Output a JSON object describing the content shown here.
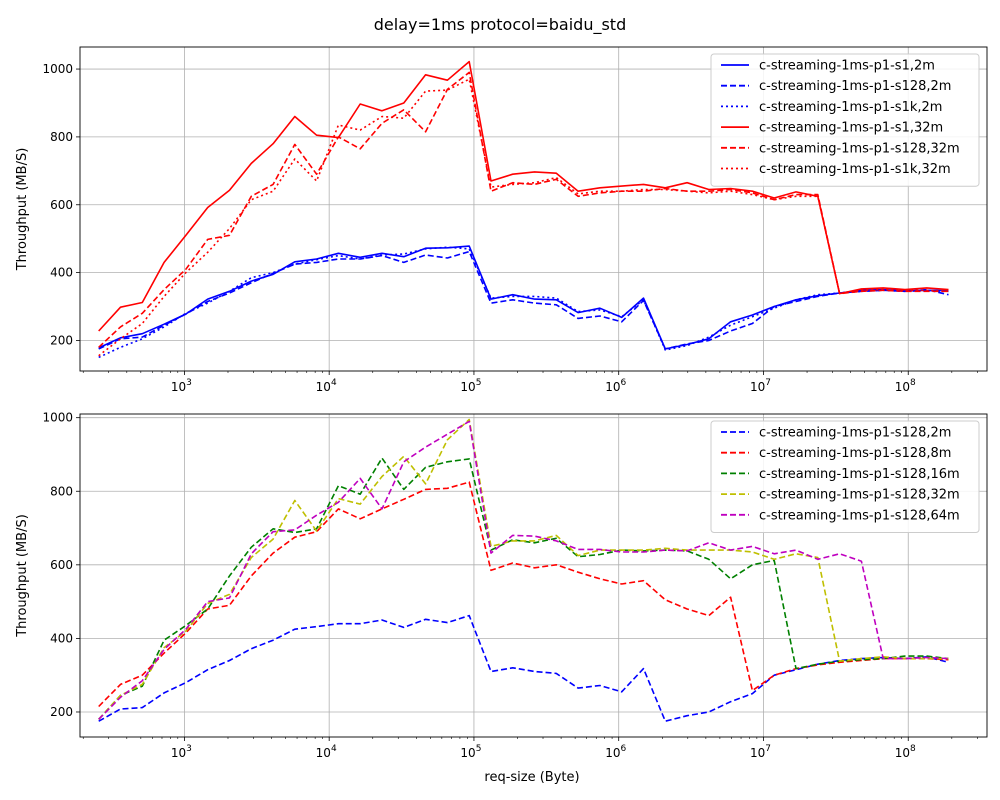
{
  "figure": {
    "title": "delay=1ms protocol=baidu_std",
    "xlabel": "req-size (Byte)"
  },
  "colors": {
    "blue": "#0000ff",
    "red": "#ff0000",
    "green": "#008000",
    "olive": "#bfbf00",
    "magenta": "#bf00bf",
    "grid": "#b0b0b0"
  },
  "chart_data": [
    {
      "type": "line",
      "xscale": "log",
      "ylabel": "Throughput (MB/S)",
      "xlim": [
        190,
        350000000
      ],
      "ylim": [
        110,
        1065
      ],
      "yticks": [
        200,
        400,
        600,
        800,
        1000
      ],
      "xticks": [
        {
          "base": "10",
          "exp": "3",
          "value": 1000
        },
        {
          "base": "10",
          "exp": "4",
          "value": 10000
        },
        {
          "base": "10",
          "exp": "5",
          "value": 100000
        },
        {
          "base": "10",
          "exp": "6",
          "value": 1000000
        },
        {
          "base": "10",
          "exp": "7",
          "value": 10000000
        },
        {
          "base": "10",
          "exp": "8",
          "value": 100000000
        }
      ],
      "grid": true,
      "legend": "top-right",
      "x": [
        256,
        362,
        512,
        724,
        1024,
        1448,
        2048,
        2896,
        4096,
        5792,
        8192,
        11585,
        16384,
        23170,
        32768,
        46341,
        65536,
        92682,
        131072,
        185364,
        262144,
        370728,
        524288,
        741455,
        1048576,
        1482910,
        2097152,
        2965821,
        4194304,
        5931642,
        8388608,
        11863283,
        16777216,
        23726566,
        33554432,
        47453133,
        67108864,
        94906266,
        134217728,
        189812531
      ],
      "series": [
        {
          "name": "c-streaming-1ms-p1-s1,2m",
          "color": "#0000ff",
          "dash": "solid",
          "values": [
            178,
            208,
            220,
            248,
            278,
            322,
            345,
            375,
            395,
            432,
            440,
            457,
            445,
            457,
            447,
            472,
            473,
            478,
            322,
            335,
            322,
            320,
            282,
            295,
            268,
            325,
            175,
            188,
            205,
            255,
            275,
            300,
            320,
            332,
            340,
            348,
            350,
            346,
            348,
            347
          ]
        },
        {
          "name": "c-streaming-1ms-p1-s128,2m",
          "color": "#0000ff",
          "dash": "dashed",
          "values": [
            175,
            205,
            210,
            245,
            278,
            315,
            340,
            370,
            398,
            425,
            430,
            440,
            440,
            450,
            430,
            452,
            443,
            462,
            310,
            320,
            310,
            305,
            265,
            272,
            255,
            318,
            175,
            190,
            200,
            228,
            250,
            300,
            315,
            330,
            340,
            345,
            348,
            345,
            350,
            335
          ]
        },
        {
          "name": "c-streaming-1ms-p1-s1k,2m",
          "color": "#0000ff",
          "dash": "dotted",
          "values": [
            150,
            180,
            205,
            240,
            280,
            310,
            345,
            385,
            400,
            425,
            438,
            450,
            440,
            452,
            455,
            470,
            475,
            470,
            325,
            330,
            330,
            325,
            285,
            290,
            270,
            320,
            172,
            185,
            210,
            245,
            270,
            295,
            320,
            335,
            340,
            345,
            348,
            345,
            347,
            345
          ]
        },
        {
          "name": "c-streaming-1ms-p1-s1,32m",
          "color": "#ff0000",
          "dash": "solid",
          "values": [
            228,
            298,
            312,
            430,
            510,
            592,
            643,
            722,
            780,
            860,
            805,
            798,
            897,
            877,
            900,
            983,
            967,
            1022,
            670,
            690,
            697,
            693,
            640,
            650,
            655,
            660,
            650,
            665,
            645,
            648,
            640,
            620,
            638,
            625,
            338,
            352,
            355,
            350,
            355,
            350
          ]
        },
        {
          "name": "c-streaming-1ms-p1-s128,32m",
          "color": "#ff0000",
          "dash": "dashed",
          "values": [
            180,
            240,
            280,
            350,
            410,
            498,
            510,
            625,
            660,
            778,
            690,
            800,
            765,
            840,
            880,
            815,
            940,
            990,
            640,
            665,
            660,
            675,
            625,
            635,
            640,
            640,
            648,
            640,
            640,
            645,
            635,
            615,
            630,
            630,
            338,
            345,
            348,
            345,
            345,
            345
          ]
        },
        {
          "name": "c-streaming-1ms-p1-s1k,32m",
          "color": "#ff0000",
          "dash": "dotted",
          "values": [
            155,
            205,
            250,
            330,
            400,
            460,
            530,
            615,
            640,
            735,
            670,
            835,
            820,
            860,
            855,
            935,
            938,
            970,
            652,
            660,
            665,
            680,
            632,
            640,
            640,
            645,
            645,
            640,
            635,
            640,
            630,
            615,
            625,
            625,
            338,
            348,
            350,
            348,
            348,
            345
          ]
        }
      ]
    },
    {
      "type": "line",
      "xscale": "log",
      "ylabel": "Throughput (MB/S)",
      "xlim": [
        190,
        350000000
      ],
      "ylim": [
        132,
        1010
      ],
      "yticks": [
        200,
        400,
        600,
        800,
        1000
      ],
      "xticks": [
        {
          "base": "10",
          "exp": "3",
          "value": 1000
        },
        {
          "base": "10",
          "exp": "4",
          "value": 10000
        },
        {
          "base": "10",
          "exp": "5",
          "value": 100000
        },
        {
          "base": "10",
          "exp": "6",
          "value": 1000000
        },
        {
          "base": "10",
          "exp": "7",
          "value": 10000000
        },
        {
          "base": "10",
          "exp": "8",
          "value": 100000000
        }
      ],
      "grid": true,
      "legend": "top-right",
      "x": [
        256,
        362,
        512,
        724,
        1024,
        1448,
        2048,
        2896,
        4096,
        5792,
        8192,
        11585,
        16384,
        23170,
        32768,
        46341,
        65536,
        92682,
        131072,
        185364,
        262144,
        370728,
        524288,
        741455,
        1048576,
        1482910,
        2097152,
        2965821,
        4194304,
        5931642,
        8388608,
        11863283,
        16777216,
        23726566,
        33554432,
        47453133,
        67108864,
        94906266,
        134217728,
        189812531
      ],
      "series": [
        {
          "name": "c-streaming-1ms-p1-s128,2m",
          "color": "#0000ff",
          "dash": "dashed",
          "values": [
            175,
            208,
            212,
            252,
            280,
            315,
            340,
            372,
            395,
            425,
            432,
            440,
            440,
            450,
            430,
            452,
            443,
            462,
            310,
            320,
            310,
            305,
            265,
            272,
            255,
            318,
            175,
            190,
            200,
            228,
            250,
            300,
            315,
            330,
            340,
            345,
            348,
            345,
            350,
            335
          ]
        },
        {
          "name": "c-streaming-1ms-p1-s128,8m",
          "color": "#ff0000",
          "dash": "dashed",
          "values": [
            215,
            275,
            300,
            360,
            415,
            480,
            490,
            570,
            632,
            675,
            690,
            752,
            725,
            752,
            778,
            805,
            808,
            825,
            585,
            605,
            592,
            600,
            580,
            562,
            548,
            557,
            505,
            480,
            462,
            512,
            258,
            300,
            318,
            328,
            335,
            340,
            345,
            345,
            345,
            342
          ]
        },
        {
          "name": "c-streaming-1ms-p1-s128,16m",
          "color": "#008000",
          "dash": "dashed",
          "values": [
            180,
            245,
            270,
            395,
            435,
            480,
            570,
            648,
            698,
            688,
            698,
            815,
            792,
            890,
            805,
            865,
            880,
            888,
            640,
            668,
            660,
            672,
            622,
            628,
            640,
            638,
            640,
            638,
            615,
            562,
            600,
            612,
            318,
            330,
            338,
            342,
            345,
            352,
            352,
            345
          ]
        },
        {
          "name": "c-streaming-1ms-p1-s128,32m",
          "color": "#bfbf00",
          "dash": "dashed",
          "values": [
            180,
            245,
            275,
            375,
            420,
            495,
            520,
            620,
            670,
            775,
            692,
            780,
            765,
            840,
            895,
            820,
            940,
            995,
            650,
            665,
            665,
            680,
            625,
            640,
            640,
            640,
            645,
            640,
            640,
            640,
            635,
            615,
            630,
            620,
            338,
            345,
            350,
            345,
            345,
            345
          ]
        },
        {
          "name": "c-streaming-1ms-p1-s128,64m",
          "color": "#bf00bf",
          "dash": "dashed",
          "values": [
            180,
            240,
            285,
            370,
            425,
            500,
            510,
            630,
            690,
            695,
            735,
            770,
            835,
            752,
            880,
            920,
            955,
            990,
            632,
            680,
            678,
            665,
            642,
            642,
            635,
            635,
            640,
            638,
            660,
            640,
            650,
            630,
            640,
            615,
            630,
            610,
            345,
            345,
            348,
            345
          ]
        }
      ]
    }
  ]
}
